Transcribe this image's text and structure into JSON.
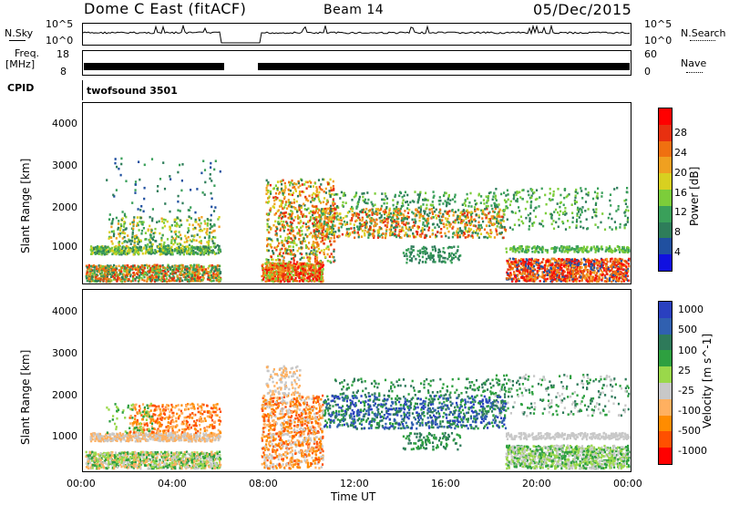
{
  "header": {
    "station": "Dome C East (fitACF)",
    "beam": "Beam 14",
    "date": "05/Dec/2015"
  },
  "aux": {
    "nsky_label": "N.Sky",
    "nsearch_label": "N.Search",
    "freq_label": "Freq.",
    "freq_unit": "[MHz]",
    "nave_label": "Nave",
    "cpid_label": "CPID",
    "cpid_value": "twofsound 3501",
    "nsky_ticks": [
      "10^5",
      "10^0"
    ],
    "nsearch_ticks": [
      "10^5",
      "10^0"
    ],
    "freq_ticks": [
      "18",
      "8"
    ],
    "nave_ticks": [
      "60",
      "0"
    ]
  },
  "colors": {
    "power": [
      "#1010e0",
      "#2050a0",
      "#2e7d5a",
      "#3aa05a",
      "#7ccd3a",
      "#d8d020",
      "#f0a020",
      "#f07010",
      "#e83010",
      "#ff0000"
    ],
    "velocity": [
      "#ff0000",
      "#ff5000",
      "#ff8c00",
      "#ffb060",
      "#c8c8c8",
      "#9ad84a",
      "#2ea040",
      "#2e7a5a",
      "#3060b0",
      "#2a40c0"
    ]
  },
  "chart_data": [
    {
      "type": "heatmap",
      "title": "Power",
      "xlabel": "Time UT",
      "ylabel": "Slant Range [km]",
      "x_ticks": [
        "00:00",
        "04:00",
        "08:00",
        "12:00",
        "16:00",
        "20:00",
        "00:00"
      ],
      "y_ticks": [
        "1000",
        "2000",
        "3000",
        "4000"
      ],
      "ylim": [
        180,
        4500
      ],
      "colorbar_label": "Power [dB]",
      "colorbar_ticks": [
        "4",
        "8",
        "12",
        "16",
        "20",
        "24",
        "28"
      ],
      "data_gap": [
        "06:00",
        "07:45"
      ]
    },
    {
      "type": "heatmap",
      "title": "Velocity",
      "xlabel": "Time UT",
      "ylabel": "Slant Range [km]",
      "x_ticks": [
        "00:00",
        "04:00",
        "08:00",
        "12:00",
        "16:00",
        "20:00",
        "00:00"
      ],
      "y_ticks": [
        "1000",
        "2000",
        "3000",
        "4000"
      ],
      "ylim": [
        180,
        4500
      ],
      "colorbar_label": "Velocity [m s^-1]",
      "colorbar_ticks": [
        "1000",
        "500",
        "100",
        "25",
        "-25",
        "-100",
        "-500",
        "-1000"
      ],
      "data_gap": [
        "06:00",
        "07:45"
      ]
    }
  ],
  "footer": {
    "xlabel": "Time UT"
  }
}
